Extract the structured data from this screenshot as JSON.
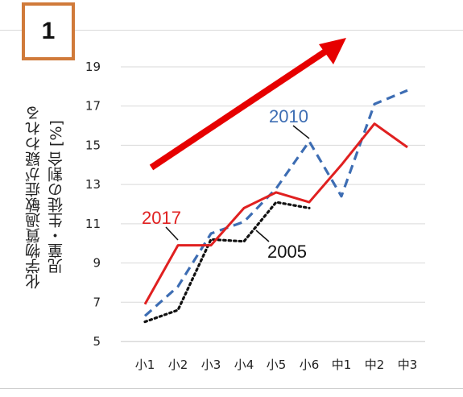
{
  "badge": "1",
  "chart_data": {
    "type": "line",
    "ylabel": "化学物質過敏症が疑われる 児童・生徒の割合 [%]",
    "categories": [
      "小1",
      "小2",
      "小3",
      "小4",
      "小5",
      "小6",
      "中1",
      "中2",
      "中3"
    ],
    "yticks": [
      "5",
      "7",
      "9",
      "11",
      "13",
      "15",
      "17",
      "19"
    ],
    "ylim": [
      5,
      19.8
    ],
    "grid": true,
    "series": [
      {
        "name": "2005",
        "color": "#111111",
        "style": "dotted",
        "values": [
          6.0,
          6.6,
          10.2,
          10.1,
          12.1,
          11.8,
          null,
          null,
          null
        ]
      },
      {
        "name": "2010",
        "color": "#3d6db3",
        "style": "dashed",
        "values": [
          6.3,
          7.8,
          10.5,
          11.1,
          12.8,
          15.2,
          12.4,
          17.1,
          17.8
        ]
      },
      {
        "name": "2017",
        "color": "#e02020",
        "style": "solid",
        "values": [
          6.9,
          9.9,
          9.9,
          11.8,
          12.6,
          12.1,
          14.0,
          16.1,
          14.9
        ]
      }
    ],
    "annotations": [
      {
        "type": "trend-arrow",
        "color": "#e60000"
      }
    ]
  }
}
